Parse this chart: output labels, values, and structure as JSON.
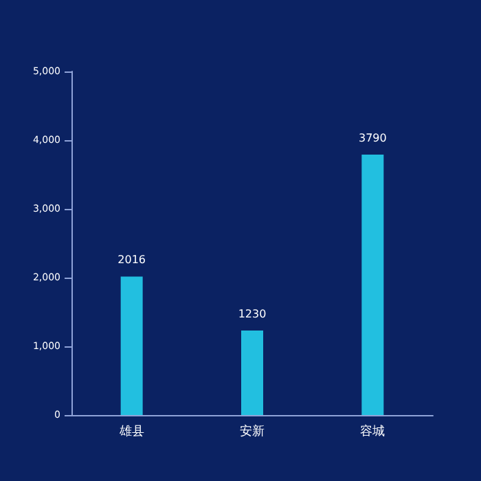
{
  "chart_data": {
    "type": "bar",
    "categories": [
      "雄县",
      "安新",
      "容城"
    ],
    "values": [
      2016,
      1230,
      3790
    ],
    "color": "#22bfe0",
    "data_labels": true,
    "grid": false,
    "ylim": [
      0,
      5000
    ],
    "yticks": [
      {
        "value": 0,
        "label": "0"
      },
      {
        "value": 1000,
        "label": "1,000"
      },
      {
        "value": 2000,
        "label": "2,000"
      },
      {
        "value": 3000,
        "label": "3,000"
      },
      {
        "value": 4000,
        "label": "4,000"
      },
      {
        "value": 5000,
        "label": "5,000"
      }
    ]
  }
}
